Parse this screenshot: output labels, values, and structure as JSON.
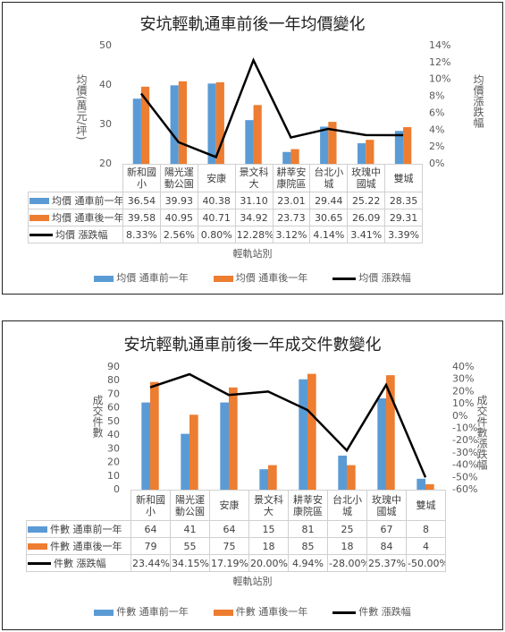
{
  "chart_data": [
    {
      "type": "bar",
      "title": "安坑輕軌通車前後一年均價變化",
      "y_label": "均價(萬元/坪)",
      "y2_label": "均價漲跌幅",
      "x_label": "輕軌站別",
      "categories": [
        "新和國小",
        "陽光運動公園",
        "安康",
        "景文科大",
        "耕莘安康院區",
        "台北小城",
        "玫瑰中國城",
        "雙城"
      ],
      "ylim": [
        20,
        50
      ],
      "yticks": [
        20,
        30,
        40,
        50
      ],
      "y2lim": [
        0,
        14
      ],
      "y2ticks": [
        {
          "value": 0,
          "label": "0%"
        },
        {
          "value": 2,
          "label": "2%"
        },
        {
          "value": 4,
          "label": "4%"
        },
        {
          "value": 6,
          "label": "6%"
        },
        {
          "value": 8,
          "label": "8%"
        },
        {
          "value": 10,
          "label": "10%"
        },
        {
          "value": 12,
          "label": "12%"
        },
        {
          "value": 14,
          "label": "14%"
        }
      ],
      "series": [
        {
          "name": "均價 通車前一年",
          "type": "bar",
          "color": "#5b9bd5",
          "values": [
            36.54,
            39.93,
            40.38,
            31.1,
            23.01,
            29.44,
            25.22,
            28.35
          ],
          "value_labels": [
            "36.54",
            "39.93",
            "40.38",
            "31.10",
            "23.01",
            "29.44",
            "25.22",
            "28.35"
          ]
        },
        {
          "name": "均價 通車後一年",
          "type": "bar",
          "color": "#ed7d31",
          "values": [
            39.58,
            40.95,
            40.71,
            34.92,
            23.73,
            30.65,
            26.09,
            29.31
          ],
          "value_labels": [
            "39.58",
            "40.95",
            "40.71",
            "34.92",
            "23.73",
            "30.65",
            "26.09",
            "29.31"
          ]
        },
        {
          "name": "均價 漲跌幅",
          "type": "line",
          "axis": "y2",
          "color": "#000000",
          "values": [
            8.33,
            2.56,
            0.8,
            12.28,
            3.12,
            4.14,
            3.41,
            3.39
          ],
          "value_labels": [
            "8.33%",
            "2.56%",
            "0.80%",
            "12.28%",
            "3.12%",
            "4.14%",
            "3.41%",
            "3.39%"
          ]
        }
      ]
    },
    {
      "type": "bar",
      "title": "安坑輕軌通車前後一年成交件數變化",
      "y_label": "成交件數",
      "y2_label": "成交件數漲跌幅",
      "x_label": "輕軌站別",
      "categories": [
        "新和國小",
        "陽光運動公園",
        "安康",
        "景文科大",
        "耕莘安康院區",
        "台北小城",
        "玫瑰中國城",
        "雙城"
      ],
      "ylim": [
        0,
        90
      ],
      "yticks": [
        0,
        10,
        20,
        30,
        40,
        50,
        60,
        70,
        80,
        90
      ],
      "y2lim": [
        -60,
        40
      ],
      "y2ticks": [
        {
          "value": -60,
          "label": "-60%"
        },
        {
          "value": -50,
          "label": "-50%"
        },
        {
          "value": -40,
          "label": "-40%"
        },
        {
          "value": -30,
          "label": "-30%"
        },
        {
          "value": -20,
          "label": "-20%"
        },
        {
          "value": -10,
          "label": "-10%"
        },
        {
          "value": 0,
          "label": "0%"
        },
        {
          "value": 10,
          "label": "10%"
        },
        {
          "value": 20,
          "label": "20%"
        },
        {
          "value": 30,
          "label": "30%"
        },
        {
          "value": 40,
          "label": "40%"
        }
      ],
      "series": [
        {
          "name": "件數 通車前一年",
          "type": "bar",
          "color": "#5b9bd5",
          "values": [
            64,
            41,
            64,
            15,
            81,
            25,
            67,
            8
          ]
        },
        {
          "name": "件數 通車後一年",
          "type": "bar",
          "color": "#ed7d31",
          "values": [
            79,
            55,
            75,
            18,
            85,
            18,
            84,
            4
          ]
        },
        {
          "name": "件數 漲跌幅",
          "type": "line",
          "axis": "y2",
          "color": "#000000",
          "values": [
            23.44,
            34.15,
            17.19,
            20.0,
            4.94,
            -28.0,
            25.37,
            -50.0
          ],
          "value_labels": [
            "23.44%",
            "34.15%",
            "17.19%",
            "20.00%",
            "4.94%",
            "-28.00%",
            "25.37%",
            "-50.00%"
          ]
        }
      ]
    }
  ]
}
